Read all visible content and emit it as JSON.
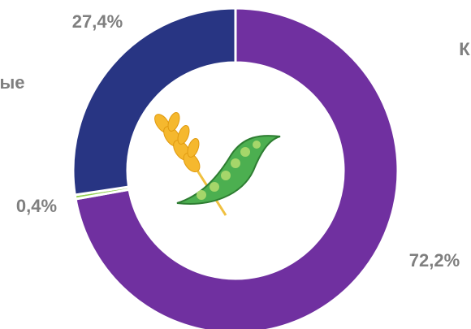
{
  "chart_data": {
    "type": "donut",
    "values": [
      72.2,
      0.4,
      27.4
    ],
    "value_labels": [
      "72,2%",
      "0,4%",
      "27,4%"
    ],
    "colors": [
      "#7030a0",
      "#92d050",
      "#283583"
    ],
    "annotations": [
      "ые",
      "К"
    ]
  }
}
